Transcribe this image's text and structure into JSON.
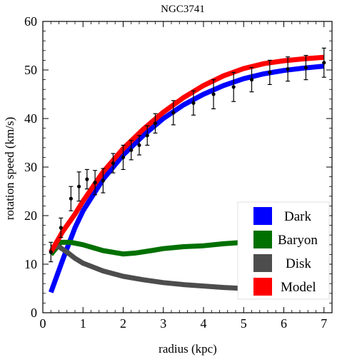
{
  "chart_data": {
    "type": "line",
    "title": "NGC3741",
    "xlabel": "radius (kpc)",
    "ylabel": "rotation speed (km/s)",
    "xlim": [
      0,
      7.2
    ],
    "ylim": [
      0,
      60
    ],
    "xticks": [
      0,
      1,
      2,
      3,
      4,
      5,
      6,
      7
    ],
    "yticks": [
      0,
      10,
      20,
      30,
      40,
      50,
      60
    ],
    "legend_position": "bottom-right",
    "series": [
      {
        "name": "Dark",
        "color": "#0000ff",
        "x": [
          0.2,
          0.5,
          0.8,
          1.0,
          1.5,
          2.0,
          2.5,
          3.0,
          3.5,
          4.0,
          4.5,
          5.0,
          5.5,
          6.0,
          6.5,
          7.0
        ],
        "values": [
          4.2,
          11.0,
          17.5,
          21.0,
          27.5,
          32.5,
          36.5,
          40.0,
          42.8,
          45.0,
          46.8,
          48.2,
          49.2,
          49.9,
          50.4,
          50.8
        ]
      },
      {
        "name": "Baryon",
        "color": "#007000",
        "x": [
          0.2,
          0.45,
          0.7,
          1.0,
          1.5,
          2.0,
          2.3,
          2.7,
          3.0,
          3.5,
          4.0,
          4.5,
          5.0,
          5.5,
          6.0,
          6.5,
          7.0
        ],
        "values": [
          12.0,
          14.5,
          14.5,
          14.0,
          12.8,
          12.1,
          12.3,
          12.8,
          13.2,
          13.6,
          13.8,
          14.2,
          14.5,
          14.8,
          15.0,
          15.2,
          15.4
        ]
      },
      {
        "name": "Disk",
        "color": "#4d4d4d",
        "x": [
          0.2,
          0.4,
          0.6,
          0.8,
          1.0,
          1.5,
          2.0,
          2.5,
          3.0,
          3.5,
          4.0,
          4.5,
          5.0,
          5.5,
          6.0,
          6.5,
          7.0
        ],
        "values": [
          13.5,
          13.6,
          12.5,
          11.2,
          10.2,
          8.6,
          7.5,
          6.8,
          6.2,
          5.8,
          5.5,
          5.2,
          5.0,
          4.8,
          4.7,
          4.6,
          4.5
        ]
      },
      {
        "name": "Model",
        "color": "#ff0000",
        "x": [
          0.2,
          0.5,
          0.8,
          1.0,
          1.5,
          2.0,
          2.5,
          3.0,
          3.5,
          4.0,
          4.5,
          5.0,
          5.5,
          6.0,
          6.5,
          7.0
        ],
        "values": [
          12.5,
          16.8,
          20.3,
          23.0,
          29.0,
          33.8,
          37.8,
          41.3,
          44.3,
          46.8,
          48.8,
          50.3,
          51.3,
          51.9,
          52.3,
          52.6
        ]
      }
    ],
    "observations": {
      "x": [
        0.2,
        0.45,
        0.7,
        0.9,
        1.1,
        1.3,
        1.5,
        1.75,
        2.0,
        2.2,
        2.4,
        2.6,
        2.8,
        3.25,
        3.75,
        4.25,
        4.75,
        5.2,
        5.65,
        6.1,
        6.55,
        7.0
      ],
      "y": [
        12.5,
        17.5,
        23.5,
        26.0,
        27.5,
        26.8,
        27.2,
        30.8,
        32.0,
        33.5,
        34.5,
        36.5,
        39.0,
        41.2,
        43.2,
        45.0,
        46.5,
        48.0,
        49.5,
        50.2,
        50.5,
        51.5
      ],
      "err": [
        2.0,
        2.0,
        2.5,
        3.0,
        2.0,
        2.5,
        2.5,
        2.0,
        2.5,
        2.0,
        2.0,
        2.0,
        2.0,
        2.5,
        2.5,
        3.0,
        3.0,
        2.5,
        2.5,
        2.5,
        2.5,
        3.0
      ]
    }
  }
}
